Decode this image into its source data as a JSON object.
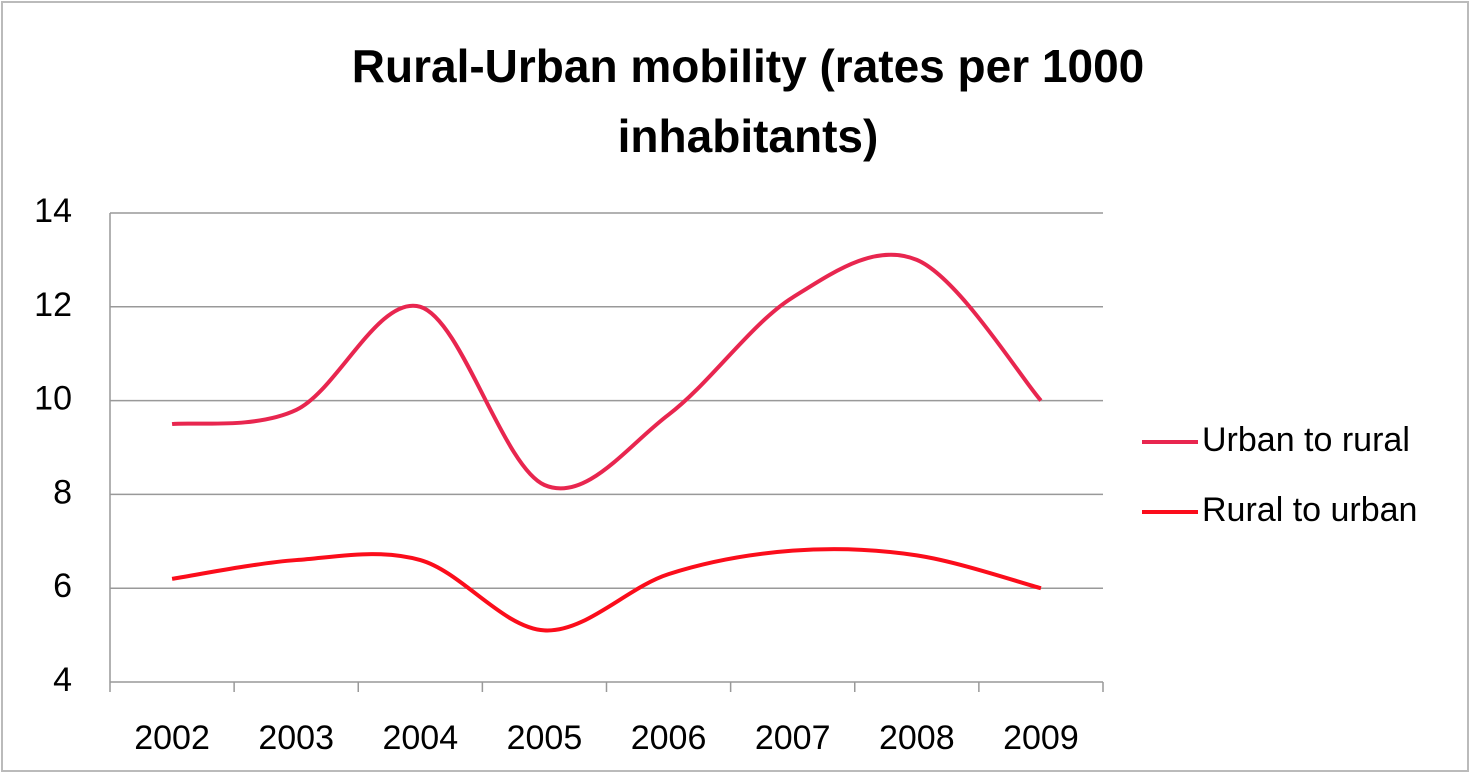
{
  "chart_data": {
    "type": "line",
    "title": "Rural-Urban mobility (rates per 1000 inhabitants)",
    "categories": [
      "2002",
      "2003",
      "2004",
      "2005",
      "2006",
      "2007",
      "2008",
      "2009"
    ],
    "series": [
      {
        "name": "Urban to rural",
        "color": "#e8264f",
        "values": [
          9.5,
          9.8,
          12.0,
          8.2,
          9.7,
          12.2,
          13.0,
          10.0
        ]
      },
      {
        "name": "Rural to urban",
        "color": "#fb0d1b",
        "values": [
          6.2,
          6.6,
          6.6,
          5.1,
          6.3,
          6.8,
          6.7,
          6.0
        ]
      }
    ],
    "ylim": [
      4,
      14
    ],
    "yticks": [
      4,
      6,
      8,
      10,
      12,
      14
    ],
    "grid": true,
    "smooth": true,
    "legend": "right"
  }
}
